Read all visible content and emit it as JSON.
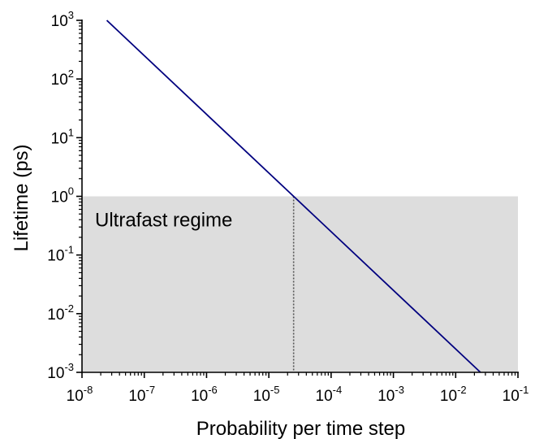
{
  "chart_data": {
    "type": "line",
    "title": "",
    "xlabel": "Probability per time step",
    "ylabel": "Lifetime (ps)",
    "xscale": "log",
    "yscale": "log",
    "xlim": [
      1e-08,
      0.1
    ],
    "ylim": [
      0.001,
      1000
    ],
    "grid": false,
    "x_ticks": [
      {
        "base": "10",
        "exp": "-8",
        "value": 1e-08
      },
      {
        "base": "10",
        "exp": "-7",
        "value": 1e-07
      },
      {
        "base": "10",
        "exp": "-6",
        "value": 1e-06
      },
      {
        "base": "10",
        "exp": "-5",
        "value": 1e-05
      },
      {
        "base": "10",
        "exp": "-4",
        "value": 0.0001
      },
      {
        "base": "10",
        "exp": "-3",
        "value": 0.001
      },
      {
        "base": "10",
        "exp": "-2",
        "value": 0.01
      },
      {
        "base": "10",
        "exp": "-1",
        "value": 0.1
      }
    ],
    "y_ticks": [
      {
        "base": "10",
        "exp": "-3",
        "value": 0.001
      },
      {
        "base": "10",
        "exp": "-2",
        "value": 0.01
      },
      {
        "base": "10",
        "exp": "-1",
        "value": 0.1
      },
      {
        "base": "10",
        "exp": "0",
        "value": 1
      },
      {
        "base": "10",
        "exp": "1",
        "value": 10
      },
      {
        "base": "10",
        "exp": "2",
        "value": 100
      },
      {
        "base": "10",
        "exp": "3",
        "value": 1000
      }
    ],
    "series": [
      {
        "color": "#00007f",
        "x": [
          2.5e-08,
          2.5e-05,
          0.025
        ],
        "y": [
          1000,
          1,
          0.001
        ]
      }
    ],
    "shaded_region": {
      "x_range": [
        1e-08,
        0.1
      ],
      "y_range": [
        0.001,
        1
      ],
      "color": "#dddddd",
      "label": "Ultrafast regime"
    },
    "reference_line": {
      "x": 2.5e-05,
      "y_range": [
        0.001,
        1
      ],
      "style": "dotted",
      "color": "#555555"
    }
  }
}
